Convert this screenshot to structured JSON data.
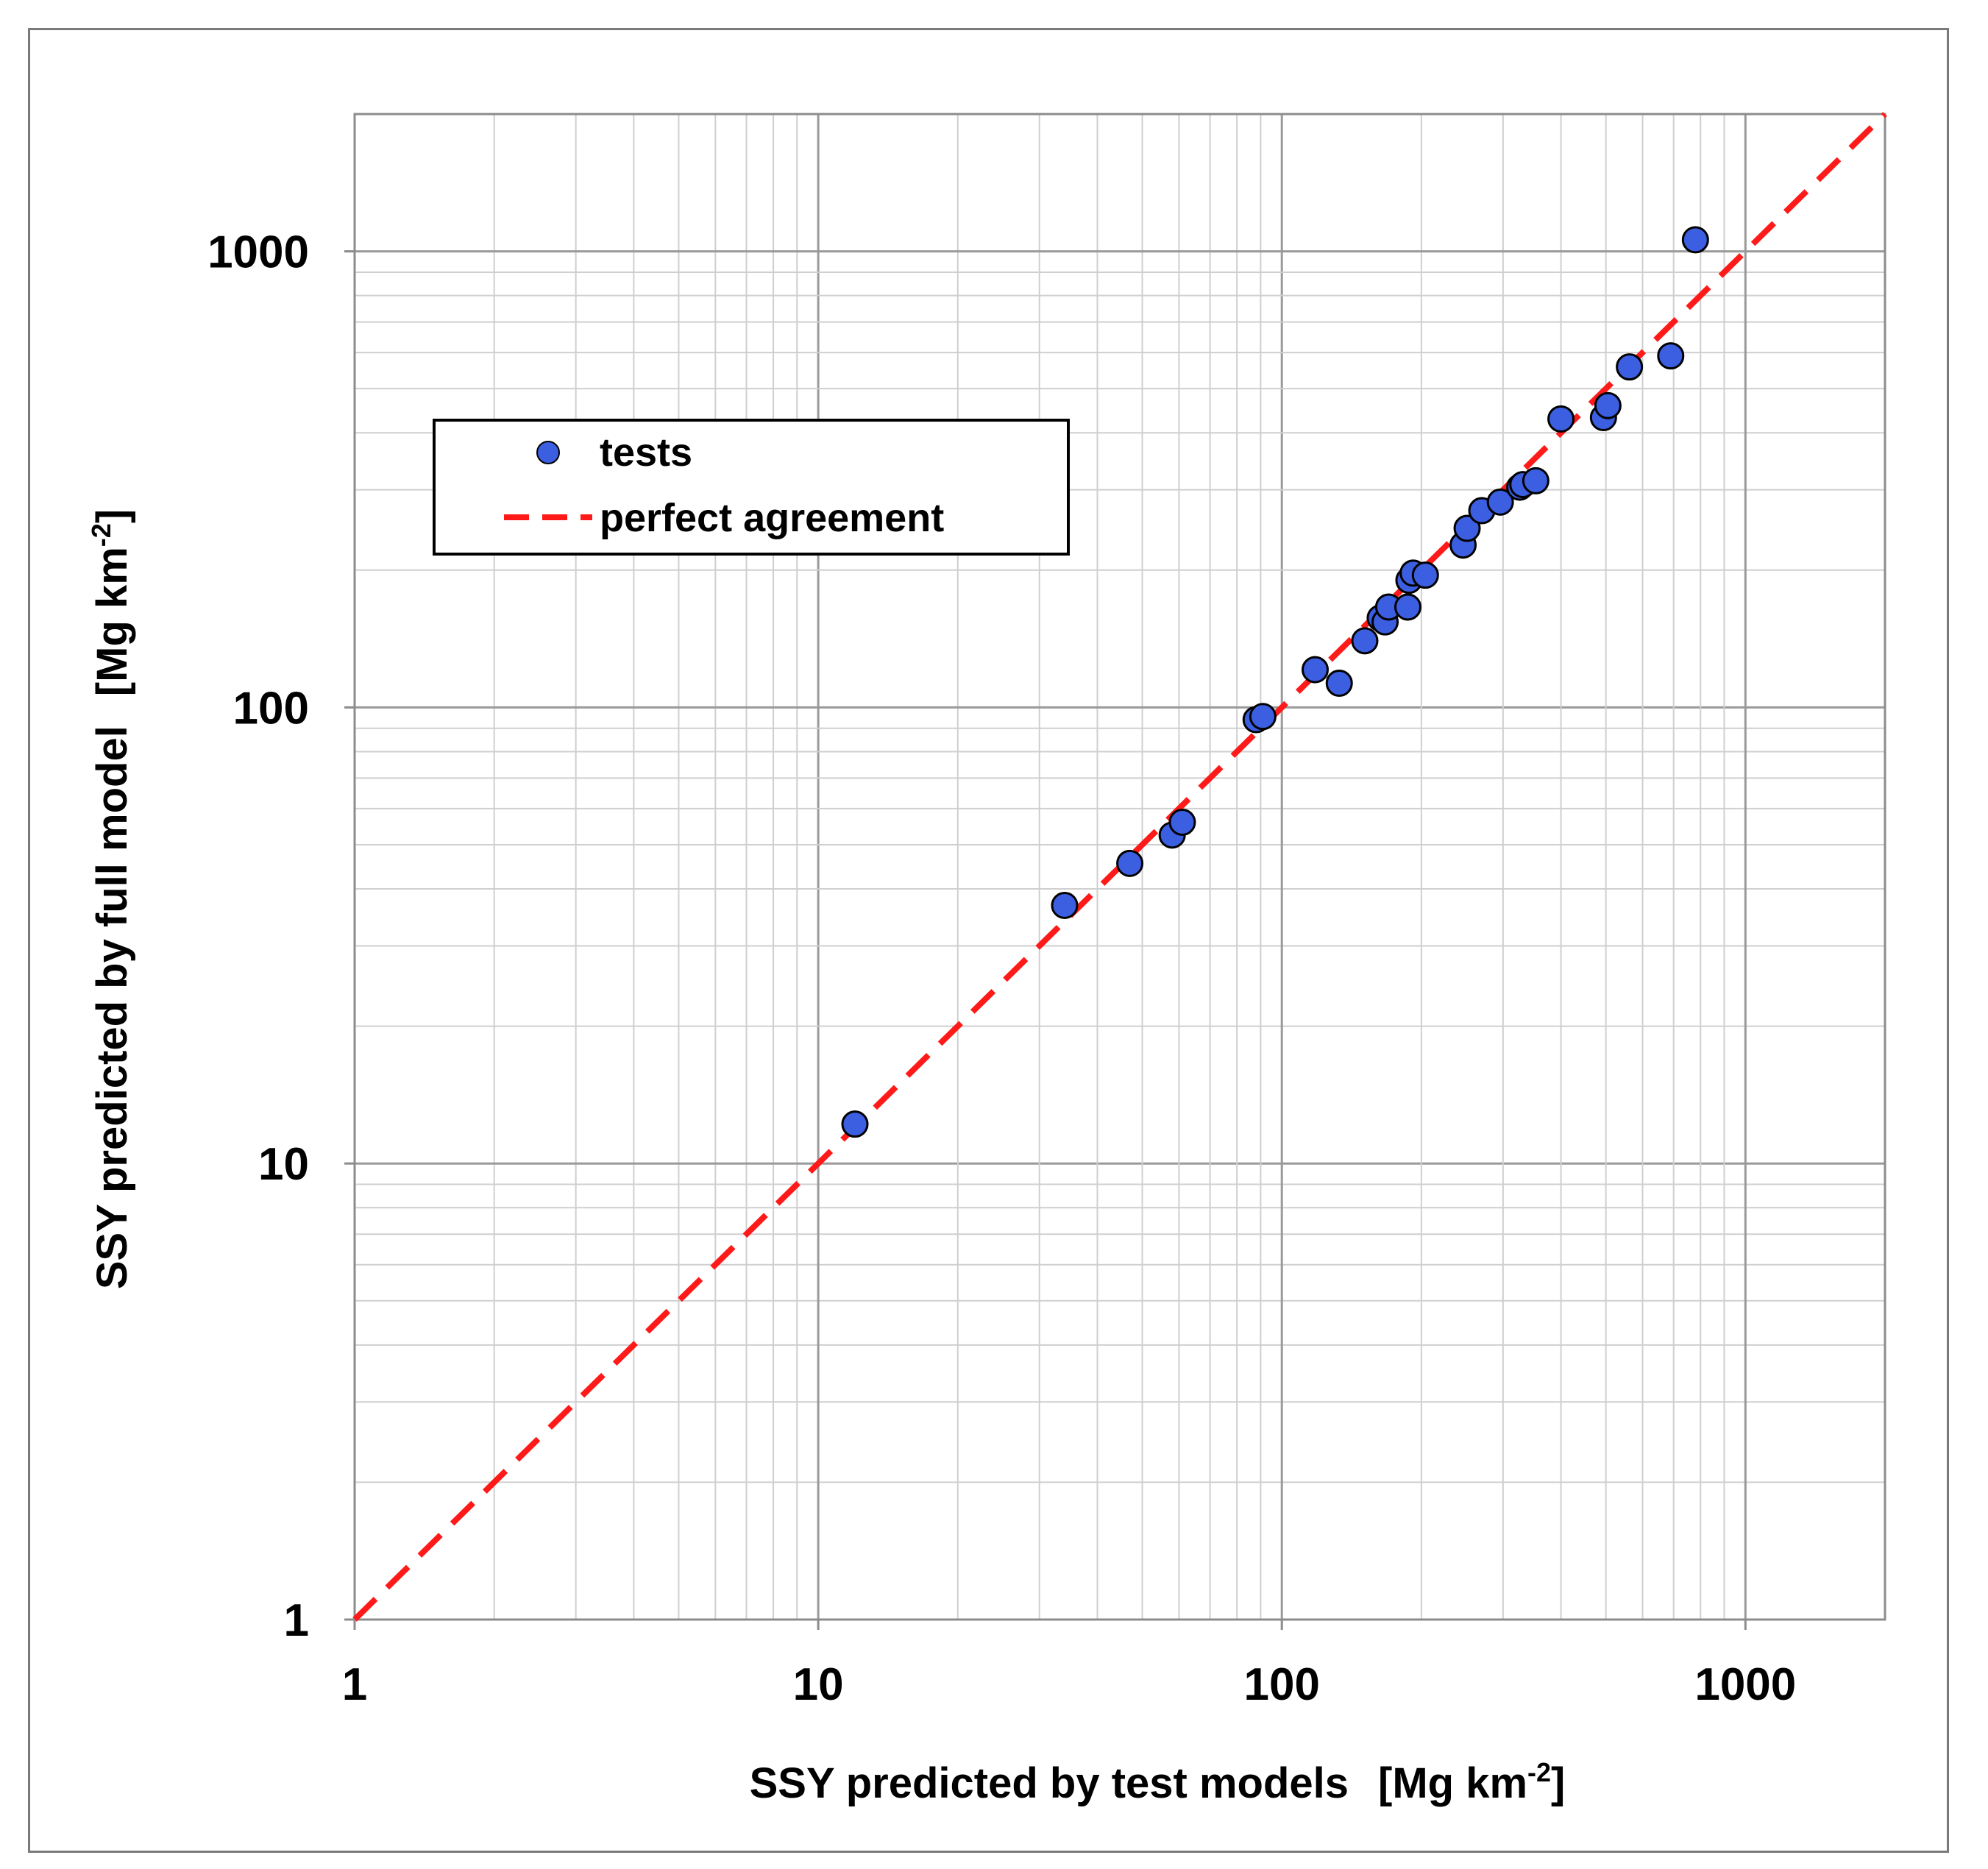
{
  "chart_data": {
    "type": "scatter",
    "title": "",
    "xlabel": "SSY predicted by test models",
    "xlabel_unit": "[Mg km",
    "xlabel_unit_sup": "-2",
    "xlabel_unit_end": "]",
    "ylabel": "SSY predicted by full model",
    "ylabel_unit": "[Mg km",
    "ylabel_unit_sup": "-2",
    "ylabel_unit_end": "]",
    "xscale": "log",
    "yscale": "log",
    "xlim": [
      1,
      2000
    ],
    "ylim": [
      1,
      2000
    ],
    "x_ticks": [
      1,
      10,
      100,
      1000
    ],
    "x_tick_labels": [
      "1",
      "10",
      "100",
      "1000"
    ],
    "y_ticks": [
      1,
      10,
      100,
      1000
    ],
    "y_tick_labels": [
      "1",
      "10",
      "100",
      "1000"
    ],
    "grid": true,
    "legend_position": "upper-left",
    "series": [
      {
        "name": "tests",
        "kind": "scatter",
        "color": "#3b5fe0",
        "points": [
          [
            12,
            12.2
          ],
          [
            34,
            36.8
          ],
          [
            47,
            45.5
          ],
          [
            58,
            52.5
          ],
          [
            61,
            56
          ],
          [
            88,
            94
          ],
          [
            91,
            95.5
          ],
          [
            118,
            121
          ],
          [
            133,
            113
          ],
          [
            151,
            140
          ],
          [
            163,
            157
          ],
          [
            167,
            154
          ],
          [
            170,
            166
          ],
          [
            187,
            166
          ],
          [
            188,
            190
          ],
          [
            192,
            197
          ],
          [
            204,
            195
          ],
          [
            246,
            227
          ],
          [
            251,
            247
          ],
          [
            270,
            270
          ],
          [
            296,
            282
          ],
          [
            326,
            304
          ],
          [
            331,
            308
          ],
          [
            353,
            314
          ],
          [
            400,
            429
          ],
          [
            494,
            432
          ],
          [
            505,
            459
          ],
          [
            562,
            558
          ],
          [
            690,
            590
          ],
          [
            780,
            1060
          ]
        ]
      },
      {
        "name": "perfect agreement",
        "kind": "line",
        "color": "#ff1a1a",
        "dashed": true,
        "points": [
          [
            1,
            1
          ],
          [
            2000,
            2000
          ]
        ]
      }
    ]
  }
}
